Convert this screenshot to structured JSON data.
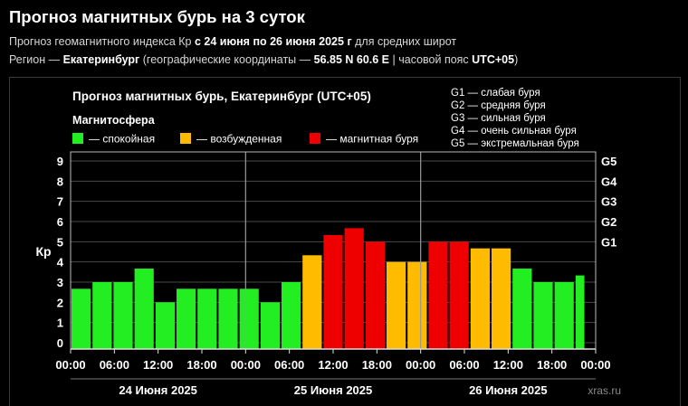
{
  "header": {
    "title": "Прогноз магнитных бурь на 3 суток",
    "line1_prefix": "Прогноз геомагнитного индекса Кр ",
    "line1_bold": "с 24 июня по 26 июня 2025 г",
    "line1_suffix": " для средних широт",
    "line2_prefix": "Регион — ",
    "line2_region": "Екатеринбург",
    "line2_mid": " (географические координаты — ",
    "line2_coords": "56.85 N 60.6 E",
    "line2_tz_prefix": " | часовой пояс ",
    "line2_tz": "UTC+05",
    "line2_suffix": ")"
  },
  "chart_data": {
    "type": "bar",
    "title": "Прогноз магнитных бурь, Екатеринбург (UTC+05)",
    "ylabel": "Кр",
    "ylim": [
      0,
      9
    ],
    "yticks": [
      "0",
      "1",
      "2",
      "3",
      "4",
      "5",
      "6",
      "7",
      "8",
      "9"
    ],
    "right_ticks": [
      {
        "label": "G1",
        "kp": 5
      },
      {
        "label": "G2",
        "kp": 6
      },
      {
        "label": "G3",
        "kp": 7
      },
      {
        "label": "G4",
        "kp": 8
      },
      {
        "label": "G5",
        "kp": 9
      }
    ],
    "xtick_labels": [
      "00:00",
      "06:00",
      "12:00",
      "18:00",
      "00:00",
      "06:00",
      "12:00",
      "18:00",
      "00:00",
      "06:00",
      "12:00",
      "18:00",
      "00:00"
    ],
    "days": [
      "24 Июня 2025",
      "25 Июня 2025",
      "26 Июня 2025"
    ],
    "values": [
      2.67,
      3.0,
      3.0,
      3.67,
      2.0,
      2.67,
      2.67,
      2.67,
      2.67,
      2.0,
      3.0,
      4.33,
      5.33,
      5.67,
      5.0,
      4.0,
      4.0,
      5.0,
      5.0,
      4.67,
      4.67,
      3.67,
      3.0,
      3.0,
      3.33
    ],
    "grid": true,
    "legend_title": "Магнитосфера",
    "legend": [
      {
        "label": "— спокойная",
        "color": "#22ee22"
      },
      {
        "label": "— возбужденная",
        "color": "#ffbb00"
      },
      {
        "label": "— магнитная буря",
        "color": "#ee0000"
      }
    ],
    "scale_legend": [
      "G1 — слабая буря",
      "G2 — средняя буря",
      "G3 — сильная буря",
      "G4 — очень сильная буря",
      "G5 — экстремальная буря"
    ],
    "watermark": "xras.ru"
  },
  "colors": {
    "quiet": "#22ee22",
    "active": "#ffbb00",
    "storm": "#ee0000",
    "grid": "#4a4a4a"
  }
}
